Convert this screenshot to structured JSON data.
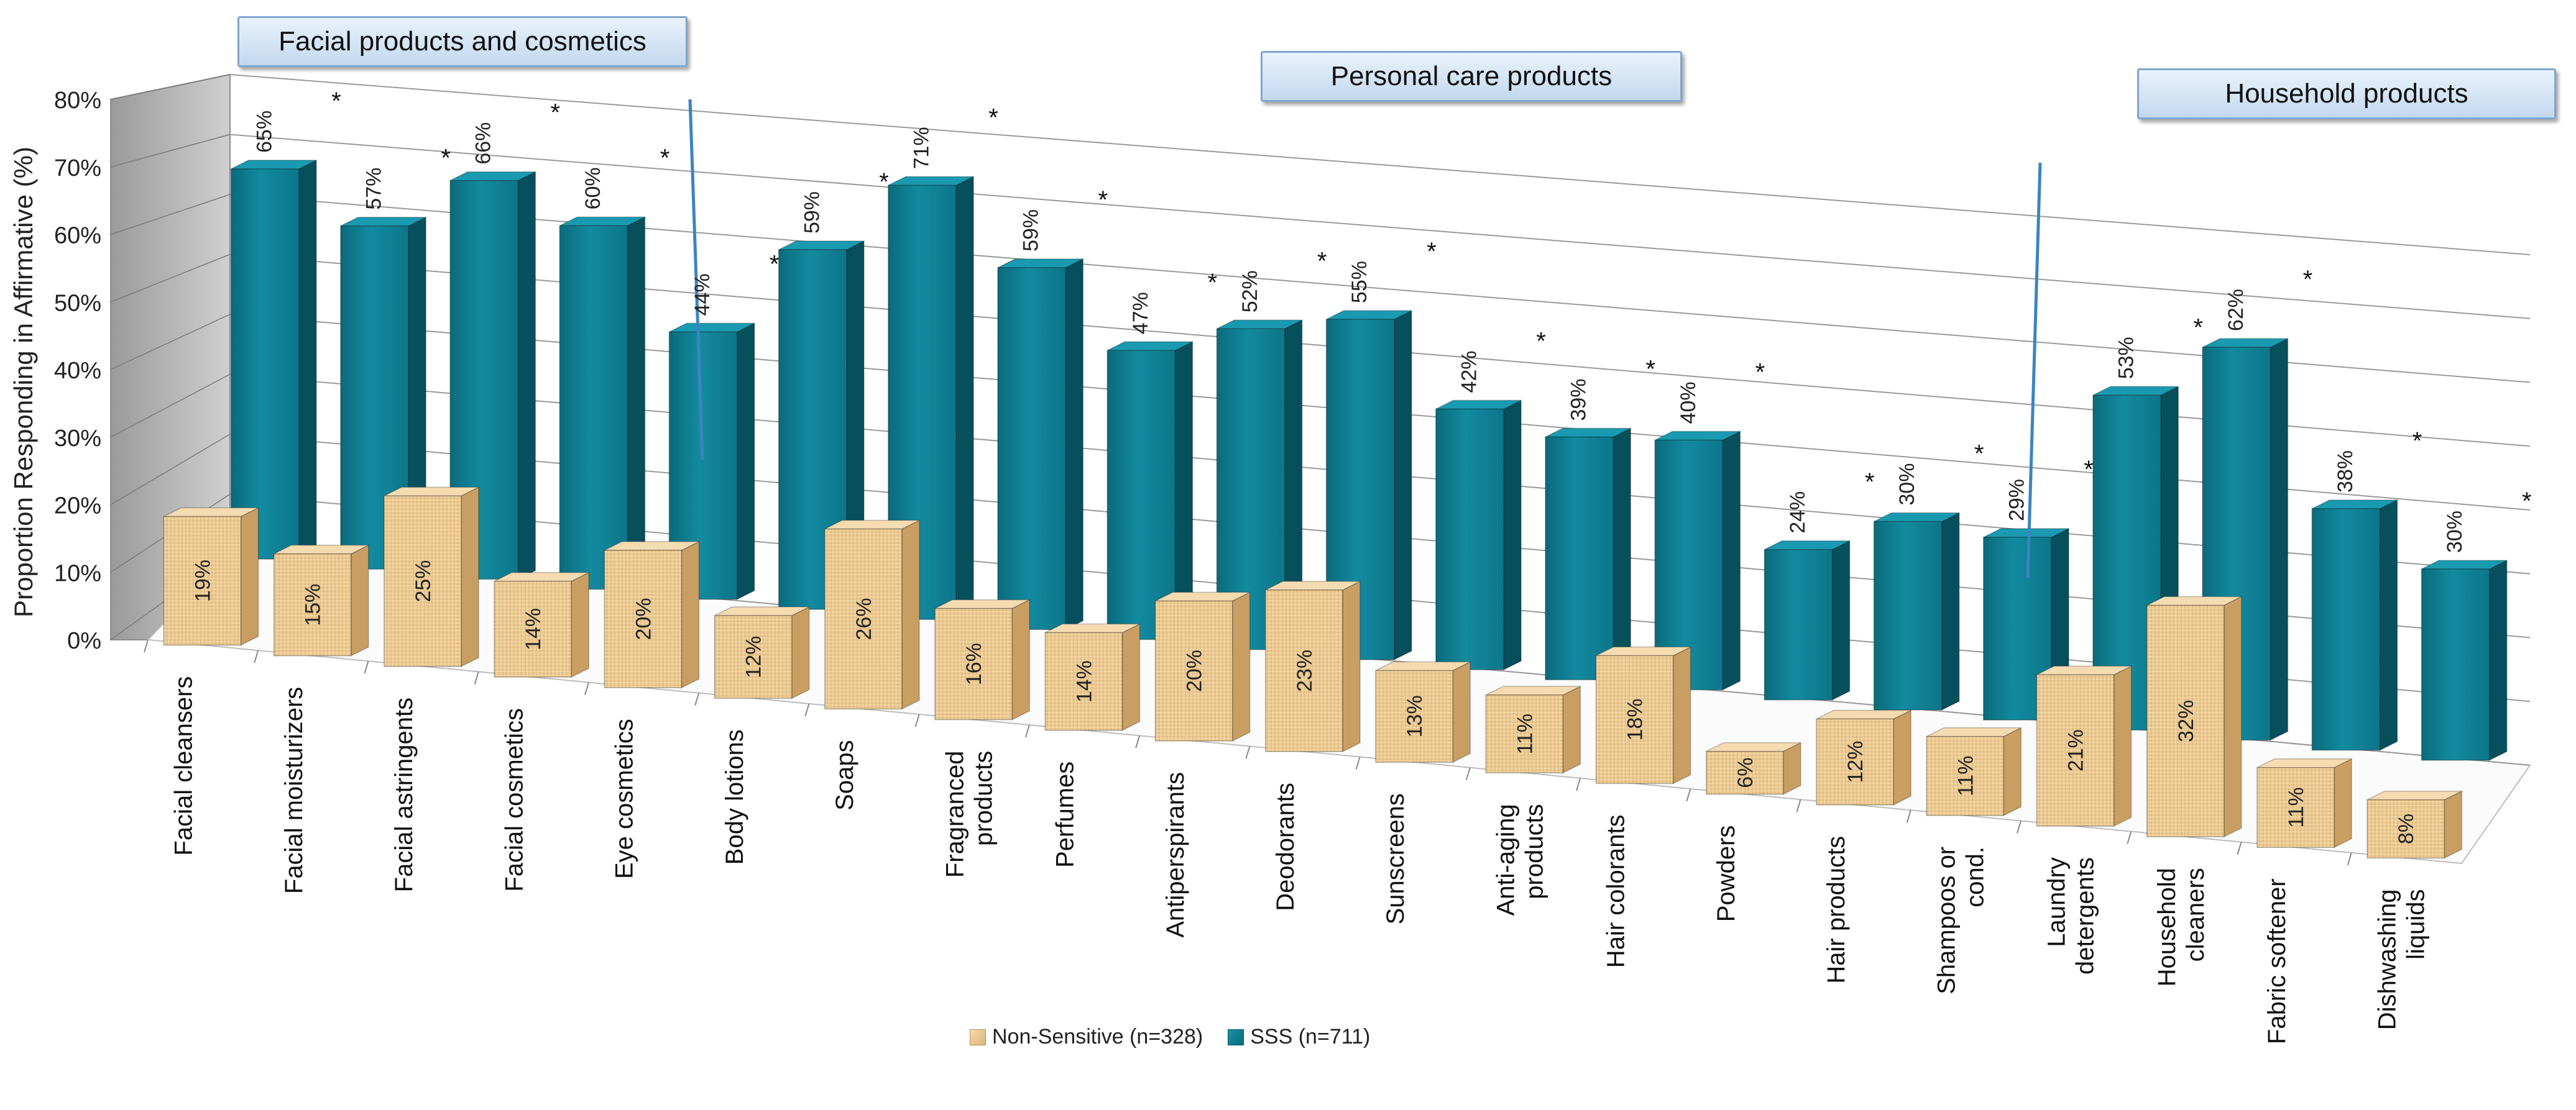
{
  "chart_data": {
    "type": "bar",
    "style": "3d clustered column",
    "title": "",
    "ylabel": "Proportion Responding in Affirmative (%)",
    "xlabel": "",
    "ylim": [
      0,
      80
    ],
    "yticks": [
      "0%",
      "10%",
      "20%",
      "30%",
      "40%",
      "50%",
      "60%",
      "70%",
      "80%"
    ],
    "categories": [
      "Facial cleansers",
      "Facial moisturizers",
      "Facial astringents",
      "Facial cosmetics",
      "Eye cosmetics",
      "Body lotions",
      "Soaps",
      "Fragranced products",
      "Perfumes",
      "Antiperspirants",
      "Deodorants",
      "Sunscreens",
      "Anti-aging products",
      "Hair colorants",
      "Powders",
      "Hair products",
      "Shampoos or cond.",
      "Laundry detergents",
      "Household cleaners",
      "Fabric softener",
      "Dishwashing liquids"
    ],
    "category_lines": [
      [
        "Facial cleansers"
      ],
      [
        "Facial moisturizers"
      ],
      [
        "Facial astringents"
      ],
      [
        "Facial cosmetics"
      ],
      [
        "Eye cosmetics"
      ],
      [
        "Body lotions"
      ],
      [
        "Soaps"
      ],
      [
        "Fragranced",
        "products"
      ],
      [
        "Perfumes"
      ],
      [
        "Antiperspirants"
      ],
      [
        "Deodorants"
      ],
      [
        "Sunscreens"
      ],
      [
        "Anti-aging",
        "products"
      ],
      [
        "Hair colorants"
      ],
      [
        "Powders"
      ],
      [
        "Hair products"
      ],
      [
        "Shampoos or",
        "cond."
      ],
      [
        "Laundry",
        "detergents"
      ],
      [
        "Household",
        "cleaners"
      ],
      [
        "Fabric softener"
      ],
      [
        "Dishwashing",
        "liquids"
      ]
    ],
    "series": [
      {
        "name": "Non-Sensitive (n=328)",
        "color": "#e8c68e",
        "values": [
          19,
          15,
          25,
          14,
          20,
          12,
          26,
          16,
          14,
          20,
          23,
          13,
          11,
          18,
          6,
          12,
          11,
          21,
          32,
          11,
          8
        ],
        "labels": [
          "19%",
          "15%",
          "25%",
          "14%",
          "20%",
          "12%",
          "26%",
          "16%",
          "14%",
          "20%",
          "23%",
          "13%",
          "11%",
          "18%",
          "6%",
          "12%",
          "11%",
          "21%",
          "32%",
          "11%",
          "8%"
        ]
      },
      {
        "name": "SSS (n=711)",
        "color": "#0e7f93",
        "values": [
          65,
          57,
          66,
          60,
          44,
          59,
          71,
          59,
          47,
          52,
          55,
          42,
          39,
          40,
          24,
          30,
          29,
          53,
          62,
          38,
          30
        ],
        "labels": [
          "65%",
          "57%",
          "66%",
          "60%",
          "44%",
          "59%",
          "71%",
          "59%",
          "47%",
          "52%",
          "55%",
          "42%",
          "39%",
          "40%",
          "24%",
          "30%",
          "29%",
          "53%",
          "62%",
          "38%",
          "30%"
        ]
      }
    ],
    "significance_marker": "*",
    "significant": [
      true,
      true,
      true,
      true,
      true,
      true,
      true,
      true,
      true,
      true,
      true,
      true,
      true,
      true,
      true,
      true,
      true,
      true,
      true,
      true,
      true
    ],
    "groups": [
      {
        "label": "Facial products and cosmetics"
      },
      {
        "label": "Personal care products"
      },
      {
        "label": "Household products"
      }
    ],
    "legend": [
      "Non-Sensitive (n=328)",
      "SSS (n=711)"
    ]
  }
}
